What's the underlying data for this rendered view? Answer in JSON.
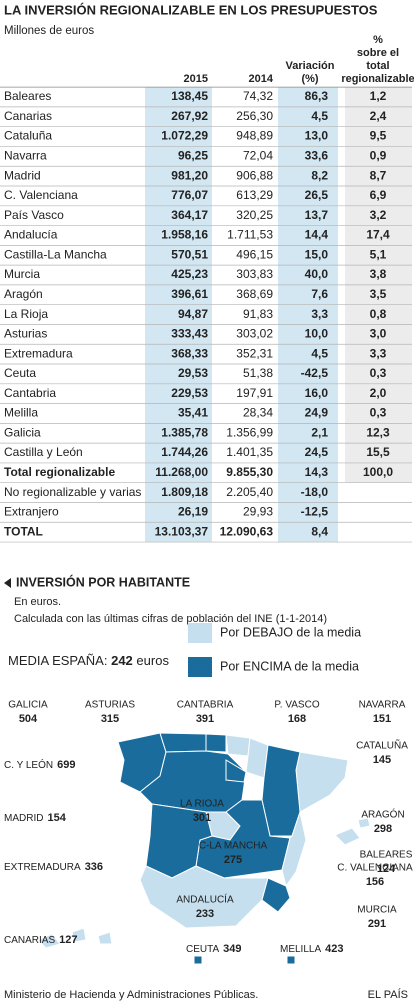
{
  "header": {
    "title": "LA INVERSIÓN REGIONALIZABLE EN LOS PRESUPUESTOS",
    "subtitle": "Millones de euros"
  },
  "table": {
    "columns": [
      [
        "2015"
      ],
      [
        "2014"
      ],
      [
        "Variación",
        "(%)"
      ],
      [
        "%",
        "sobre el",
        "total",
        "regionalizable"
      ]
    ],
    "rows": [
      [
        "Baleares",
        "138,45",
        "74,32",
        "86,3",
        "1,2"
      ],
      [
        "Canarias",
        "267,92",
        "256,30",
        "4,5",
        "2,4"
      ],
      [
        "Cataluña",
        "1.072,29",
        "948,89",
        "13,0",
        "9,5"
      ],
      [
        "Navarra",
        "96,25",
        "72,04",
        "33,6",
        "0,9"
      ],
      [
        "Madrid",
        "981,20",
        "906,88",
        "8,2",
        "8,7"
      ],
      [
        "C. Valenciana",
        "776,07",
        "613,29",
        "26,5",
        "6,9"
      ],
      [
        "País Vasco",
        "364,17",
        "320,25",
        "13,7",
        "3,2"
      ],
      [
        "Andalucía",
        "1.958,16",
        "1.711,53",
        "14,4",
        "17,4"
      ],
      [
        "Castilla-La Mancha",
        "570,51",
        "496,15",
        "15,0",
        "5,1"
      ],
      [
        "Murcia",
        "425,23",
        "303,83",
        "40,0",
        "3,8"
      ],
      [
        "Aragón",
        "396,61",
        "368,69",
        "7,6",
        "3,5"
      ],
      [
        "La Rioja",
        "94,87",
        "91,83",
        "3,3",
        "0,8"
      ],
      [
        "Asturias",
        "333,43",
        "303,02",
        "10,0",
        "3,0"
      ],
      [
        "Extremadura",
        "368,33",
        "352,31",
        "4,5",
        "3,3"
      ],
      [
        "Ceuta",
        "29,53",
        "51,38",
        "-42,5",
        "0,3"
      ],
      [
        "Cantabria",
        "229,53",
        "197,91",
        "16,0",
        "2,0"
      ],
      [
        "Melilla",
        "35,41",
        "28,34",
        "24,9",
        "0,3"
      ],
      [
        "Galicia",
        "1.385,78",
        "1.356,99",
        "2,1",
        "12,3"
      ],
      [
        "Castilla y León",
        "1.744,26",
        "1.401,35",
        "24,5",
        "15,5"
      ],
      [
        "Total regionalizable",
        "11.268,00",
        "9.855,30",
        "14,3",
        "100,0"
      ],
      [
        "No regionalizable y varias",
        "1.809,18",
        "2.205,40",
        "-18,0"
      ],
      [
        "Extranjero",
        "26,19",
        "29,93",
        "-12,5"
      ],
      [
        "TOTAL",
        "13.103,37",
        "12.090,63",
        "8,4"
      ]
    ]
  },
  "map": {
    "title": "INVERSIÓN POR HABITANTE",
    "notes": [
      "En euros.",
      "Calculada con las últimas cifras de población del INE (1-1-2014)"
    ],
    "media": {
      "label": "MEDIA ESPAÑA:",
      "value": 242,
      "unit": "euros"
    },
    "legend": [
      {
        "label": "Por DEBAJO de la media",
        "color": "#c6dfee"
      },
      {
        "label": "Por ENCIMA de la media",
        "color": "#1a6c9c"
      }
    ],
    "regions": [
      {
        "name": "GALICIA",
        "value": 504
      },
      {
        "name": "ASTURIAS",
        "value": 315
      },
      {
        "name": "CANTABRIA",
        "value": 391
      },
      {
        "name": "P. VASCO",
        "value": 168
      },
      {
        "name": "NAVARRA",
        "value": 151
      },
      {
        "name": "CATALUÑA",
        "value": 145
      },
      {
        "name": "C. Y LEÓN",
        "value": 699
      },
      {
        "name": "LA RIOJA",
        "value": 301
      },
      {
        "name": "ARAGÓN",
        "value": 298
      },
      {
        "name": "MADRID",
        "value": 154
      },
      {
        "name": "BALEARES",
        "value": 124
      },
      {
        "name": "C-LA MANCHA",
        "value": 275
      },
      {
        "name": "EXTREMADURA",
        "value": 336
      },
      {
        "name": "C. VALENCIANA",
        "value": 156
      },
      {
        "name": "ANDALUCÍA",
        "value": 233
      },
      {
        "name": "MURCIA",
        "value": 291
      },
      {
        "name": "CANARIAS",
        "value": 127
      },
      {
        "name": "CEUTA",
        "value": 349
      },
      {
        "name": "MELILLA",
        "value": 423
      }
    ]
  },
  "footer": {
    "source": "Ministerio de Hacienda y Administraciones Públicas.",
    "brand": "EL PAÍS"
  }
}
